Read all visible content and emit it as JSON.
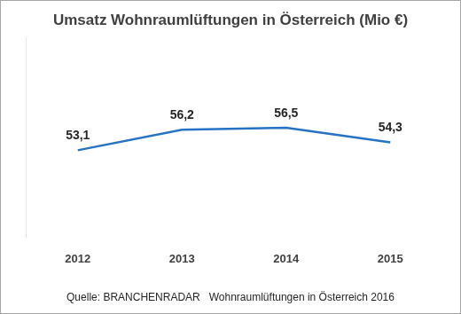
{
  "chart_data": {
    "type": "line",
    "title": "Umsatz Wohnraumlüftungen in Österreich (Mio €)",
    "annotations": [
      "Quelle: BRANCHENRADAR   Wohnraumlüftungen in Österreich 2016"
    ],
    "categories": [
      "2012",
      "2013",
      "2014",
      "2015"
    ],
    "values": [
      53.1,
      56.2,
      56.5,
      54.3
    ],
    "value_labels": [
      "53,1",
      "56,2",
      "56,5",
      "54,3"
    ],
    "color": "#2673c5",
    "marker": "none",
    "line_style": "solid",
    "ylim": [
      40,
      70
    ],
    "yticks": [],
    "grid": false,
    "data_labels": true,
    "tick_labels": "x"
  }
}
